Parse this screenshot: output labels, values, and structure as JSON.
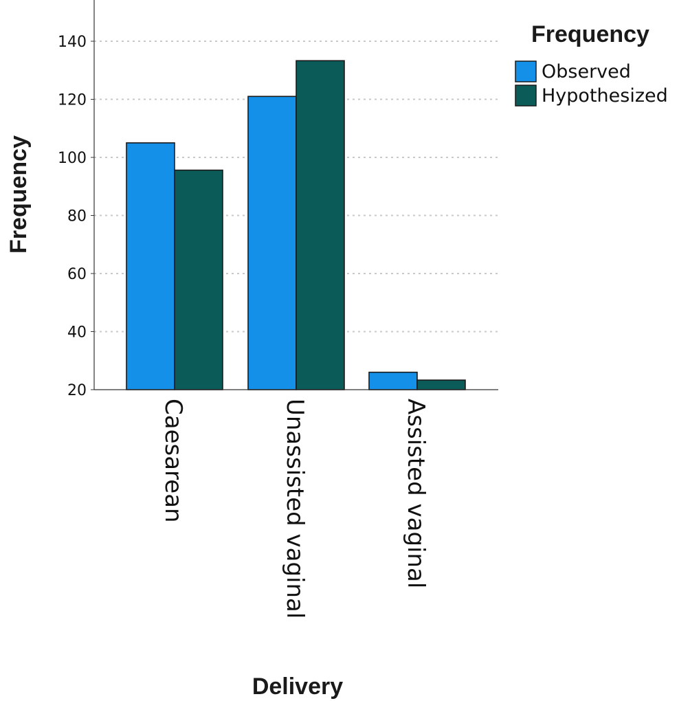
{
  "chart_data": {
    "type": "bar",
    "title": "",
    "xlabel": "Delivery",
    "ylabel": "Frequency",
    "categories": [
      "Caesarean",
      "Unassisted vaginal",
      "Assisted vaginal"
    ],
    "series": [
      {
        "name": "Observed",
        "values": [
          105,
          121,
          26
        ],
        "color": "#1490e8"
      },
      {
        "name": "Hypothesized",
        "values": [
          95.6,
          133.3,
          23.3
        ],
        "color": "#0b5b58"
      }
    ],
    "ylim": [
      20,
      150
    ],
    "yticks": [
      "20",
      "40",
      "60",
      "80",
      "100",
      "120",
      "140"
    ],
    "grid": "dotted horizontal",
    "legend": {
      "title": "Frequency",
      "placement": "top-right"
    }
  }
}
